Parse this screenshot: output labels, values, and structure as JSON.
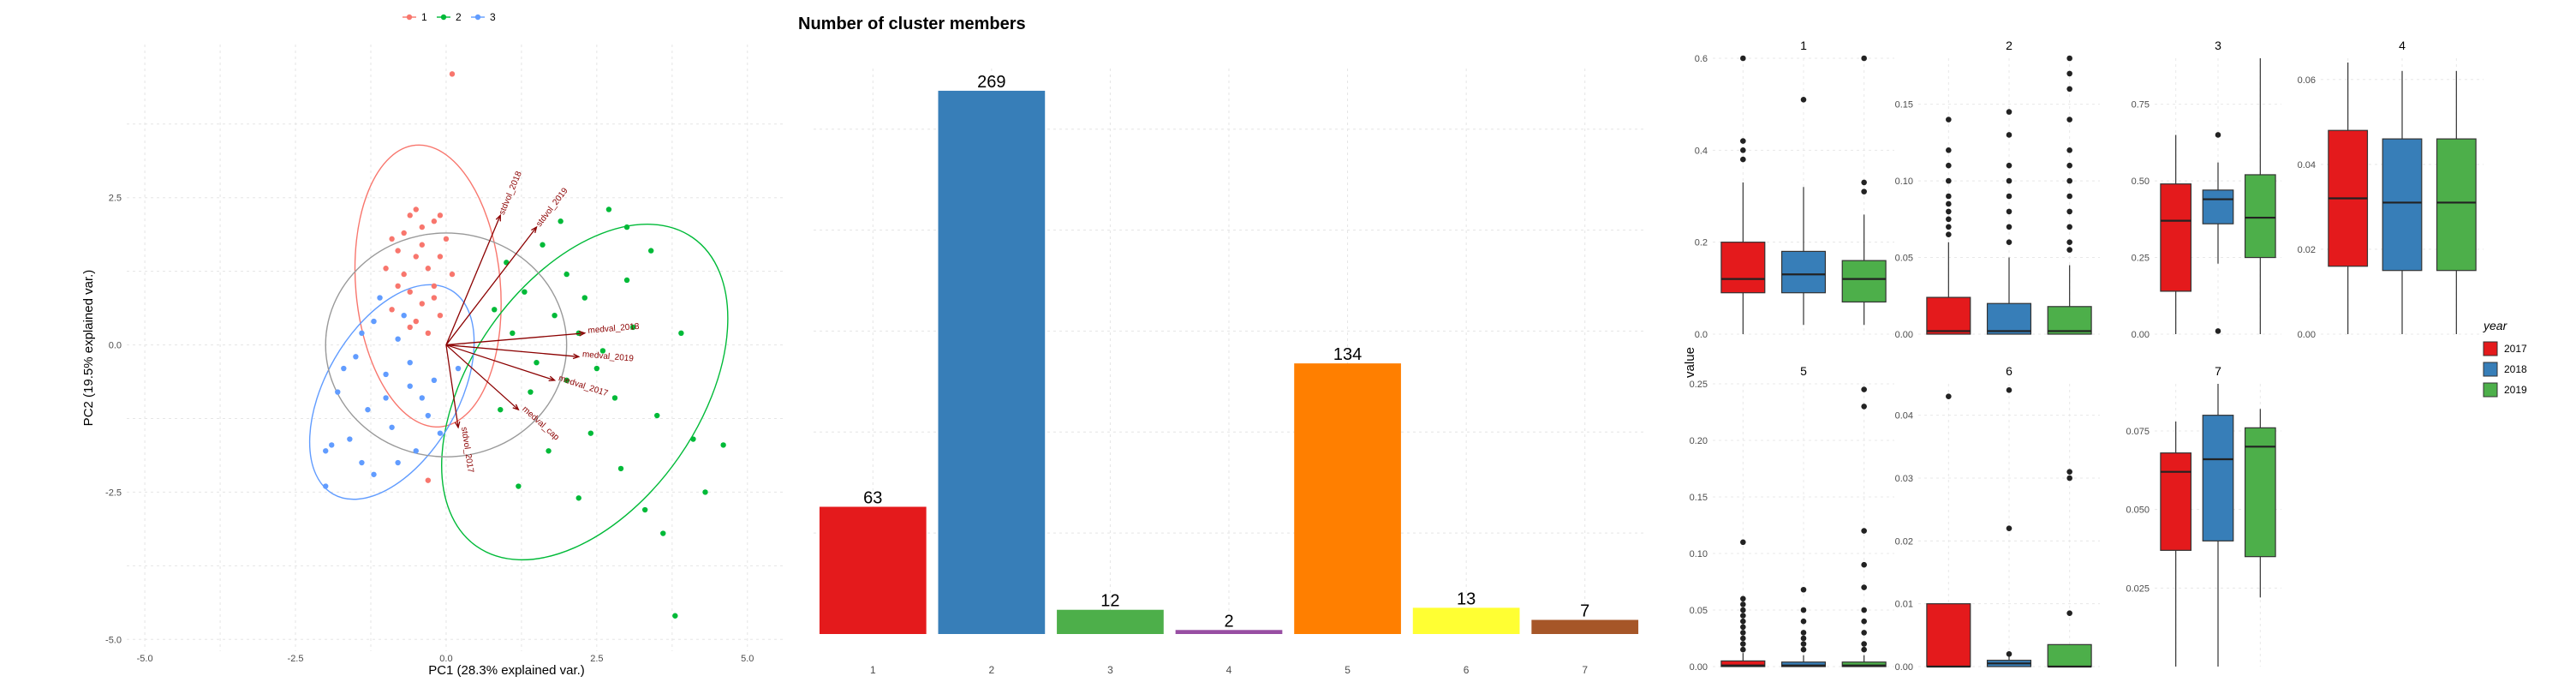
{
  "colors": {
    "c1": "#e41a1c",
    "c2": "#377eb8",
    "c3": "#4daf4a",
    "c4": "#984ea3",
    "c5": "#ff7f00",
    "c6": "#ffff33",
    "c7": "#a65628",
    "pca1": "#f8766d",
    "pca2": "#00ba38",
    "pca3": "#619cff",
    "arrow": "#8b0000"
  },
  "chart_data": [
    {
      "type": "scatter",
      "title": "",
      "xlabel": "PC1 (28.3% explained var.)",
      "ylabel": "PC2 (19.5% explained var.)",
      "xlim": [
        -5.3,
        5.6
      ],
      "ylim": [
        -5.2,
        5.1
      ],
      "xticks": [
        "-5.0",
        "-2.5",
        "0.0",
        "2.5",
        "5.0"
      ],
      "xtick_values": [
        -5,
        -2.5,
        0,
        2.5,
        5
      ],
      "yticks": [
        "-5.0",
        "-2.5",
        "0.0",
        "2.5"
      ],
      "ytick_values": [
        -5,
        -2.5,
        0,
        2.5
      ],
      "legend": {
        "placement": "top",
        "entries": [
          "1",
          "2",
          "3"
        ]
      },
      "series": [
        {
          "name": "1",
          "color": "pca1",
          "points": [
            [
              -0.6,
              2.2
            ],
            [
              -0.4,
              2.0
            ],
            [
              -0.2,
              2.1
            ],
            [
              0.0,
              1.8
            ],
            [
              -0.8,
              1.6
            ],
            [
              -0.5,
              1.5
            ],
            [
              -0.3,
              1.3
            ],
            [
              -0.7,
              1.2
            ],
            [
              -0.2,
              1.0
            ],
            [
              -0.6,
              0.9
            ],
            [
              -0.4,
              0.7
            ],
            [
              -0.9,
              0.6
            ],
            [
              -0.1,
              0.5
            ],
            [
              -0.5,
              0.4
            ],
            [
              -0.3,
              0.2
            ],
            [
              -0.7,
              1.9
            ],
            [
              -0.1,
              1.5
            ],
            [
              -0.8,
              1.0
            ],
            [
              0.1,
              1.2
            ],
            [
              -0.4,
              1.7
            ],
            [
              -0.6,
              0.3
            ],
            [
              -1.0,
              1.3
            ],
            [
              -0.2,
              0.8
            ],
            [
              0.1,
              4.6
            ],
            [
              -0.3,
              -2.3
            ],
            [
              -0.5,
              2.3
            ],
            [
              -0.1,
              2.2
            ],
            [
              -0.9,
              1.8
            ]
          ]
        },
        {
          "name": "2",
          "color": "pca2",
          "points": [
            [
              1.0,
              1.4
            ],
            [
              1.3,
              0.9
            ],
            [
              1.8,
              0.5
            ],
            [
              2.2,
              0.2
            ],
            [
              2.6,
              -0.1
            ],
            [
              1.5,
              -0.3
            ],
            [
              2.0,
              -0.6
            ],
            [
              2.8,
              -0.9
            ],
            [
              3.1,
              0.3
            ],
            [
              3.5,
              -1.2
            ],
            [
              2.4,
              -1.5
            ],
            [
              1.7,
              -1.8
            ],
            [
              2.9,
              -2.1
            ],
            [
              0.8,
              0.6
            ],
            [
              1.1,
              0.2
            ],
            [
              2.0,
              1.2
            ],
            [
              3.4,
              1.6
            ],
            [
              3.0,
              2.0
            ],
            [
              1.9,
              2.1
            ],
            [
              2.7,
              2.3
            ],
            [
              3.9,
              0.2
            ],
            [
              4.1,
              -1.6
            ],
            [
              4.3,
              -2.5
            ],
            [
              4.6,
              -1.7
            ],
            [
              3.3,
              -2.8
            ],
            [
              3.6,
              -3.2
            ],
            [
              3.8,
              -4.6
            ],
            [
              1.2,
              -2.4
            ],
            [
              2.2,
              -2.6
            ],
            [
              0.9,
              -1.1
            ],
            [
              1.4,
              -0.8
            ],
            [
              3.0,
              1.1
            ],
            [
              2.3,
              0.8
            ],
            [
              1.6,
              1.7
            ],
            [
              2.5,
              -0.4
            ]
          ]
        },
        {
          "name": "3",
          "color": "pca3",
          "points": [
            [
              -1.2,
              0.4
            ],
            [
              -0.8,
              0.1
            ],
            [
              -1.5,
              -0.2
            ],
            [
              -1.0,
              -0.5
            ],
            [
              -0.6,
              -0.3
            ],
            [
              -1.8,
              -0.8
            ],
            [
              -1.3,
              -1.1
            ],
            [
              -0.9,
              -1.4
            ],
            [
              -1.6,
              -1.6
            ],
            [
              -0.4,
              -0.9
            ],
            [
              -0.2,
              -0.6
            ],
            [
              -1.1,
              0.8
            ],
            [
              -0.7,
              0.5
            ],
            [
              -1.9,
              -1.7
            ],
            [
              -2.0,
              -1.8
            ],
            [
              -1.4,
              -2.0
            ],
            [
              -0.5,
              -1.8
            ],
            [
              -0.3,
              -1.2
            ],
            [
              0.2,
              -0.4
            ],
            [
              -1.7,
              -0.4
            ],
            [
              -1.2,
              -2.2
            ],
            [
              -2.0,
              -2.4
            ],
            [
              -0.8,
              -2.0
            ],
            [
              -0.1,
              -1.5
            ],
            [
              -1.4,
              0.2
            ],
            [
              -0.6,
              -0.7
            ],
            [
              -1.0,
              -0.9
            ]
          ]
        }
      ],
      "ellipses": [
        {
          "series": "1",
          "cx": -0.3,
          "cy": 1.0,
          "rx": 1.2,
          "ry": 2.4,
          "angle": -5
        },
        {
          "series": "2",
          "cx": 2.3,
          "cy": -0.8,
          "rx": 1.9,
          "ry": 3.2,
          "angle": 35
        },
        {
          "series": "3",
          "cx": -0.9,
          "cy": -0.8,
          "rx": 1.1,
          "ry": 2.0,
          "angle": 30
        },
        {
          "series": "all",
          "cx": 0.0,
          "cy": 0.0,
          "rx": 2.0,
          "ry": 1.9,
          "angle": 0
        }
      ],
      "loadings": [
        {
          "label": "stdvol_2018",
          "x": 0.9,
          "y": 2.2
        },
        {
          "label": "stdvol_2019",
          "x": 1.5,
          "y": 2.0
        },
        {
          "label": "medval_2018",
          "x": 2.3,
          "y": 0.2
        },
        {
          "label": "medval_2019",
          "x": 2.2,
          "y": -0.2
        },
        {
          "label": "medval_2017",
          "x": 1.8,
          "y": -0.6
        },
        {
          "label": "stdvol_2017",
          "x": 0.2,
          "y": -1.4
        },
        {
          "label": "medval_cap",
          "x": 1.2,
          "y": -1.1
        }
      ]
    },
    {
      "type": "bar",
      "title": "Number of cluster members",
      "xlabel": "",
      "ylabel": "",
      "categories": [
        "1",
        "2",
        "3",
        "4",
        "5",
        "6",
        "7"
      ],
      "values": [
        63,
        269,
        12,
        2,
        134,
        13,
        7
      ],
      "labels": [
        "63",
        "269",
        "12",
        "2",
        "134",
        "13",
        "7"
      ],
      "ylim": [
        0,
        280
      ]
    },
    {
      "type": "boxplot",
      "title": "",
      "ylabel": "value",
      "legend": {
        "title": "year",
        "placement": "right",
        "entries": [
          "2017",
          "2018",
          "2019"
        ]
      },
      "panels": [
        {
          "name": "1",
          "ylim": [
            0,
            0.6
          ],
          "ticks": [
            "0.0",
            "0.2",
            "0.4",
            "0.6"
          ],
          "tick_values": [
            0,
            0.2,
            0.4,
            0.6
          ],
          "boxes": [
            {
              "year": "2017",
              "min": 0.0,
              "q1": 0.09,
              "median": 0.12,
              "q3": 0.2,
              "max": 0.33,
              "outliers": [
                0.6,
                0.42,
                0.4,
                0.38
              ]
            },
            {
              "year": "2018",
              "min": 0.02,
              "q1": 0.09,
              "median": 0.13,
              "q3": 0.18,
              "max": 0.32,
              "outliers": [
                0.51
              ]
            },
            {
              "year": "2019",
              "min": 0.02,
              "q1": 0.07,
              "median": 0.12,
              "q3": 0.16,
              "max": 0.26,
              "outliers": [
                0.6,
                0.33,
                0.31
              ]
            }
          ]
        },
        {
          "name": "2",
          "ylim": [
            0,
            0.18
          ],
          "ticks": [
            "0.00",
            "0.05",
            "0.10",
            "0.15"
          ],
          "tick_values": [
            0,
            0.05,
            0.1,
            0.15
          ],
          "boxes": [
            {
              "year": "2017",
              "min": 0.0,
              "q1": 0.0,
              "median": 0.002,
              "q3": 0.024,
              "max": 0.06,
              "outliers": [
                0.14,
                0.12,
                0.11,
                0.1,
                0.09,
                0.085,
                0.08,
                0.075,
                0.07,
                0.065
              ]
            },
            {
              "year": "2018",
              "min": 0.0,
              "q1": 0.0,
              "median": 0.002,
              "q3": 0.02,
              "max": 0.05,
              "outliers": [
                0.145,
                0.13,
                0.11,
                0.1,
                0.09,
                0.08,
                0.07,
                0.06
              ]
            },
            {
              "year": "2019",
              "min": 0.0,
              "q1": 0.0,
              "median": 0.002,
              "q3": 0.018,
              "max": 0.045,
              "outliers": [
                0.18,
                0.17,
                0.16,
                0.14,
                0.12,
                0.11,
                0.1,
                0.09,
                0.08,
                0.07,
                0.06,
                0.055
              ]
            }
          ]
        },
        {
          "name": "3",
          "ylim": [
            0,
            0.9
          ],
          "ticks": [
            "0.00",
            "0.25",
            "0.50",
            "0.75"
          ],
          "tick_values": [
            0,
            0.25,
            0.5,
            0.75
          ],
          "boxes": [
            {
              "year": "2017",
              "min": 0.0,
              "q1": 0.14,
              "median": 0.37,
              "q3": 0.49,
              "max": 0.65,
              "outliers": []
            },
            {
              "year": "2018",
              "min": 0.23,
              "q1": 0.36,
              "median": 0.44,
              "q3": 0.47,
              "max": 0.56,
              "outliers": [
                0.65,
                0.01
              ]
            },
            {
              "year": "2019",
              "min": 0.0,
              "q1": 0.25,
              "median": 0.38,
              "q3": 0.52,
              "max": 0.9,
              "outliers": []
            }
          ]
        },
        {
          "name": "4",
          "ylim": [
            0,
            0.065
          ],
          "ticks": [
            "0.00",
            "0.02",
            "0.04",
            "0.06"
          ],
          "tick_values": [
            0,
            0.02,
            0.04,
            0.06
          ],
          "boxes": [
            {
              "year": "2017",
              "min": 0.0,
              "q1": 0.016,
              "median": 0.032,
              "q3": 0.048,
              "max": 0.064,
              "outliers": []
            },
            {
              "year": "2018",
              "min": 0.0,
              "q1": 0.015,
              "median": 0.031,
              "q3": 0.046,
              "max": 0.062,
              "outliers": []
            },
            {
              "year": "2019",
              "min": 0.0,
              "q1": 0.015,
              "median": 0.031,
              "q3": 0.046,
              "max": 0.062,
              "outliers": []
            }
          ]
        },
        {
          "name": "5",
          "ylim": [
            0,
            0.25
          ],
          "ticks": [
            "0.00",
            "0.05",
            "0.10",
            "0.15",
            "0.20",
            "0.25"
          ],
          "tick_values": [
            0,
            0.05,
            0.1,
            0.15,
            0.2,
            0.25
          ],
          "boxes": [
            {
              "year": "2017",
              "min": 0.0,
              "q1": 0.0,
              "median": 0.001,
              "q3": 0.005,
              "max": 0.012,
              "outliers": [
                0.11,
                0.06,
                0.055,
                0.05,
                0.045,
                0.04,
                0.035,
                0.03,
                0.025,
                0.02,
                0.015
              ]
            },
            {
              "year": "2018",
              "min": 0.0,
              "q1": 0.0,
              "median": 0.001,
              "q3": 0.004,
              "max": 0.01,
              "outliers": [
                0.068,
                0.05,
                0.04,
                0.03,
                0.025,
                0.02,
                0.015
              ]
            },
            {
              "year": "2019",
              "min": 0.0,
              "q1": 0.0,
              "median": 0.001,
              "q3": 0.004,
              "max": 0.01,
              "outliers": [
                0.245,
                0.23,
                0.12,
                0.09,
                0.07,
                0.05,
                0.04,
                0.03,
                0.02,
                0.015
              ]
            }
          ]
        },
        {
          "name": "6",
          "ylim": [
            0,
            0.045
          ],
          "ticks": [
            "0.00",
            "0.01",
            "0.02",
            "0.03",
            "0.04"
          ],
          "tick_values": [
            0,
            0.01,
            0.02,
            0.03,
            0.04
          ],
          "boxes": [
            {
              "year": "2017",
              "min": 0.0,
              "q1": 0.0,
              "median": 0.0,
              "q3": 0.01,
              "max": 0.01,
              "outliers": [
                0.043
              ]
            },
            {
              "year": "2018",
              "min": 0.0,
              "q1": 0.0,
              "median": 0.0005,
              "q3": 0.001,
              "max": 0.002,
              "outliers": [
                0.044,
                0.022,
                0.002
              ]
            },
            {
              "year": "2019",
              "min": 0.0,
              "q1": 0.0,
              "median": 0.0,
              "q3": 0.0035,
              "max": 0.0035,
              "outliers": [
                0.031,
                0.03,
                0.0085
              ]
            }
          ]
        },
        {
          "name": "7",
          "ylim": [
            0.0,
            0.09
          ],
          "ticks": [
            "0.025",
            "0.050",
            "0.075"
          ],
          "tick_values": [
            0.025,
            0.05,
            0.075
          ],
          "boxes": [
            {
              "year": "2017",
              "min": 0.0,
              "q1": 0.037,
              "median": 0.062,
              "q3": 0.068,
              "max": 0.078,
              "outliers": []
            },
            {
              "year": "2018",
              "min": 0.0,
              "q1": 0.04,
              "median": 0.066,
              "q3": 0.08,
              "max": 0.09,
              "outliers": []
            },
            {
              "year": "2019",
              "min": 0.022,
              "q1": 0.035,
              "median": 0.07,
              "q3": 0.076,
              "max": 0.082,
              "outliers": []
            }
          ]
        }
      ]
    }
  ]
}
